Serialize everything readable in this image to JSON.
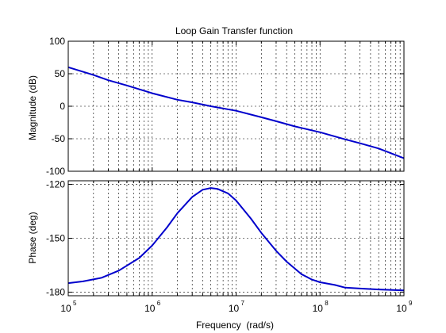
{
  "colors": {
    "curve": "#0000cc",
    "grid": "#000000",
    "axes": "#000000",
    "background": "#ffffff"
  },
  "chart_data": [
    {
      "type": "line",
      "title": "Loop Gain Transfer function",
      "xlabel": "",
      "ylabel": "Magnitude (dB)",
      "xscale": "log",
      "xlim": [
        100000,
        1000000000
      ],
      "ylim": [
        -100,
        100
      ],
      "yticks": [
        "100",
        "50",
        "0",
        "-50",
        "-100"
      ],
      "grid": true,
      "series": [
        {
          "x": [
            100000,
            200000,
            300000,
            500000,
            1000000,
            2000000,
            3000000,
            5000000,
            10000000,
            20000000,
            30000000,
            50000000,
            100000000,
            200000000,
            300000000,
            500000000,
            1000000000
          ],
          "values": [
            60,
            48,
            40,
            32,
            20,
            10,
            6,
            0,
            -7,
            -17,
            -23,
            -31,
            -40,
            -51,
            -57,
            -65,
            -80
          ]
        }
      ]
    },
    {
      "type": "line",
      "title": "",
      "xlabel": "Frequency  (rad/s)",
      "ylabel": "Phase (deg)",
      "xscale": "log",
      "xlim": [
        100000,
        1000000000
      ],
      "ylim": [
        -182,
        -118
      ],
      "yticks": [
        "-120",
        "-150",
        "-180"
      ],
      "xticks": [
        {
          "base": "10",
          "exp": "5"
        },
        {
          "base": "10",
          "exp": "6"
        },
        {
          "base": "10",
          "exp": "7"
        },
        {
          "base": "10",
          "exp": "8"
        },
        {
          "base": "10",
          "exp": "9"
        }
      ],
      "grid": true,
      "series": [
        {
          "x": [
            100000,
            150000,
            250000,
            400000,
            700000,
            1000000,
            1500000,
            2000000,
            3000000,
            4000000,
            5000000,
            6000000,
            8000000,
            10000000,
            15000000,
            20000000,
            30000000,
            40000000,
            60000000,
            80000000,
            100000000,
            150000000,
            200000000,
            300000000,
            500000000,
            1000000000
          ],
          "values": [
            -175,
            -174,
            -172,
            -168,
            -161,
            -154,
            -144,
            -136,
            -127,
            -123,
            -122,
            -122.5,
            -125,
            -129,
            -139,
            -147,
            -157,
            -163,
            -170,
            -173,
            -174.5,
            -176,
            -177.5,
            -178,
            -178.5,
            -179
          ]
        }
      ]
    }
  ]
}
